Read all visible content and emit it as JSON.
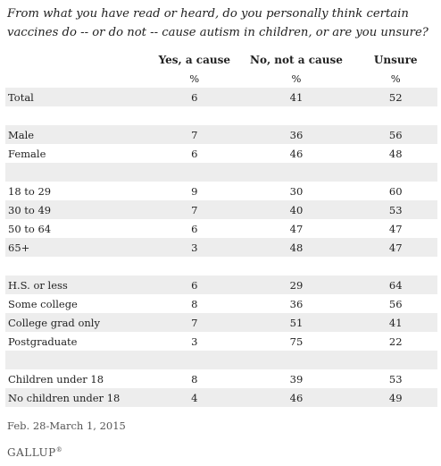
{
  "title": "From what you have read or heard, do you personally think certain vaccines do -- or do not -- cause autism in children, or are you unsure?",
  "chart_data": {
    "type": "table",
    "columns": [
      "",
      "Yes, a cause",
      "No, not a cause",
      "Unsure"
    ],
    "rows": [
      {
        "label": "",
        "values": [
          "%",
          "%",
          "%"
        ],
        "shade": false
      },
      {
        "label": "Total",
        "values": [
          "6",
          "41",
          "52"
        ],
        "shade": true
      },
      {
        "label": "",
        "values": [
          "",
          "",
          ""
        ],
        "shade": false
      },
      {
        "label": "Male",
        "values": [
          "7",
          "36",
          "56"
        ],
        "shade": true
      },
      {
        "label": "Female",
        "values": [
          "6",
          "46",
          "48"
        ],
        "shade": false
      },
      {
        "label": "",
        "values": [
          "",
          "",
          ""
        ],
        "shade": true
      },
      {
        "label": "18 to 29",
        "values": [
          "9",
          "30",
          "60"
        ],
        "shade": false
      },
      {
        "label": "30 to 49",
        "values": [
          "7",
          "40",
          "53"
        ],
        "shade": true
      },
      {
        "label": "50 to 64",
        "values": [
          "6",
          "47",
          "47"
        ],
        "shade": false
      },
      {
        "label": "65+",
        "values": [
          "3",
          "48",
          "47"
        ],
        "shade": true
      },
      {
        "label": "",
        "values": [
          "",
          "",
          ""
        ],
        "shade": false
      },
      {
        "label": "H.S. or less",
        "values": [
          "6",
          "29",
          "64"
        ],
        "shade": true
      },
      {
        "label": "Some college",
        "values": [
          "8",
          "36",
          "56"
        ],
        "shade": false
      },
      {
        "label": "College grad only",
        "values": [
          "7",
          "51",
          "41"
        ],
        "shade": true
      },
      {
        "label": "Postgraduate",
        "values": [
          "3",
          "75",
          "22"
        ],
        "shade": false
      },
      {
        "label": "",
        "values": [
          "",
          "",
          ""
        ],
        "shade": true
      },
      {
        "label": "Children under 18",
        "values": [
          "8",
          "39",
          "53"
        ],
        "shade": false
      },
      {
        "label": "No children under 18",
        "values": [
          "4",
          "46",
          "49"
        ],
        "shade": true
      }
    ]
  },
  "footnote": "Feb. 28-March 1, 2015",
  "brand": "GALLUP",
  "brand_mark": "®"
}
